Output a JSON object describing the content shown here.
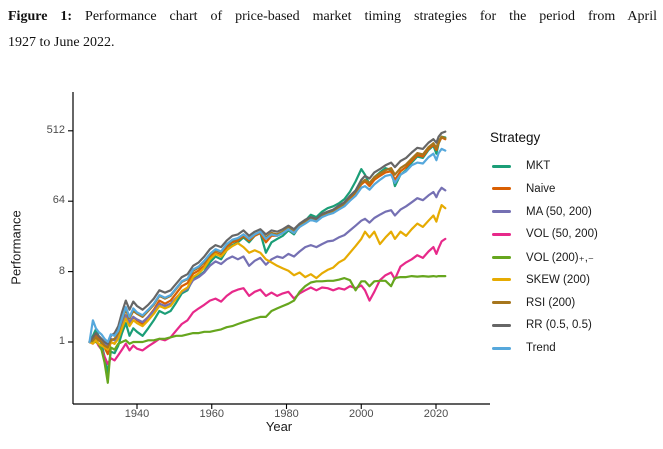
{
  "caption": {
    "figure_label": "Figure 1:",
    "line1": "Performance chart of price-based market timing strategies for the period from April",
    "line2": "1927 to June 2022."
  },
  "chart_data": {
    "type": "line",
    "title": "",
    "xlabel": "Year",
    "ylabel": "Performance",
    "legend_title": "Strategy",
    "legend_position": "right",
    "grid": false,
    "yscale": "log",
    "log_base": 8,
    "y_ticks": [
      1,
      8,
      64,
      512
    ],
    "x_ticks": [
      1940,
      1960,
      1980,
      2000,
      2020
    ],
    "xlim": [
      1927.3,
      2022.5
    ],
    "ylim": [
      0.25,
      600
    ],
    "x": [
      1927.3,
      1928.2,
      1929,
      1929.7,
      1930.5,
      1931.3,
      1932.2,
      1933,
      1934,
      1935,
      1936,
      1937,
      1938,
      1939,
      1940,
      1941.5,
      1943,
      1944.5,
      1946,
      1947.5,
      1949,
      1950.5,
      1952,
      1953.5,
      1955,
      1956.5,
      1958,
      1959.5,
      1961,
      1962.5,
      1964,
      1965.5,
      1967,
      1968.5,
      1970,
      1971.5,
      1973,
      1974.5,
      1976,
      1977.5,
      1979,
      1980.5,
      1982,
      1983.5,
      1985,
      1986.5,
      1988,
      1989.5,
      1991,
      1992.5,
      1994,
      1995.5,
      1997,
      1998.5,
      2000,
      2001,
      2002.2,
      2003.5,
      2005,
      2006.5,
      2008,
      2009,
      2010.5,
      2012,
      2013.5,
      2015,
      2016.5,
      2018,
      2019.3,
      2020.1,
      2020.7,
      2021.5,
      2022.5
    ],
    "series": [
      {
        "name": "MKT",
        "color": "#1B9E77",
        "values": [
          1.0,
          1.2,
          1.45,
          1.2,
          0.95,
          0.65,
          0.4,
          0.75,
          0.72,
          0.9,
          1.3,
          1.75,
          1.2,
          1.5,
          1.35,
          1.2,
          1.5,
          1.9,
          2.5,
          2.3,
          2.5,
          3.2,
          4.2,
          4.6,
          6.5,
          7.0,
          8.0,
          10.5,
          12.5,
          11.5,
          15,
          17.5,
          19,
          22,
          19,
          23,
          25,
          14,
          19,
          21,
          23,
          27,
          24,
          31,
          36,
          43,
          40,
          47,
          52,
          55,
          60,
          68,
          85,
          115,
          165,
          140,
          105,
          130,
          150,
          170,
          160,
          100,
          140,
          160,
          200,
          240,
          230,
          290,
          330,
          260,
          350,
          430,
          420
        ]
      },
      {
        "name": "Naive",
        "color": "#D95F02",
        "values": [
          1.0,
          1.1,
          1.25,
          1.1,
          1.0,
          0.85,
          0.7,
          1.0,
          0.95,
          1.15,
          1.6,
          2.2,
          1.7,
          2.1,
          1.9,
          1.7,
          2.1,
          2.6,
          3.4,
          3.1,
          3.4,
          4.2,
          5.2,
          5.7,
          7.5,
          8.3,
          9.5,
          12,
          14,
          13,
          16.5,
          19,
          20,
          23,
          20,
          23,
          25,
          19,
          23,
          23,
          25,
          28,
          25,
          30,
          34,
          38,
          36,
          41,
          45,
          48,
          53,
          58,
          70,
          82,
          105,
          115,
          100,
          120,
          135,
          150,
          155,
          120,
          155,
          175,
          210,
          250,
          240,
          300,
          340,
          290,
          360,
          420,
          400
        ]
      },
      {
        "name": "MA (50, 200)",
        "color": "#7570B3",
        "values": [
          1.0,
          1.05,
          1.15,
          1.05,
          1.0,
          0.95,
          0.9,
          1.1,
          1.05,
          1.2,
          1.6,
          2.2,
          1.8,
          2.1,
          1.95,
          1.8,
          2.1,
          2.5,
          3.1,
          2.9,
          3.1,
          3.7,
          4.4,
          4.8,
          6.2,
          6.8,
          7.8,
          9.5,
          10.8,
          10,
          11.5,
          12.5,
          11.5,
          12.5,
          9.5,
          11,
          12,
          9.8,
          11.5,
          12.5,
          12,
          13.5,
          12.5,
          14.5,
          16.5,
          17.5,
          16.5,
          18,
          19.5,
          20,
          22,
          23.5,
          27,
          31,
          36,
          38,
          34,
          39,
          43,
          47,
          49,
          42,
          50,
          55,
          62,
          70,
          66,
          76,
          84,
          72,
          84,
          95,
          88
        ]
      },
      {
        "name": "VOL (50, 200)",
        "color": "#E7298A",
        "values": [
          1.0,
          0.95,
          1.05,
          0.9,
          0.8,
          0.65,
          0.52,
          0.62,
          0.58,
          0.68,
          0.8,
          0.95,
          0.78,
          0.9,
          0.82,
          0.78,
          0.88,
          0.98,
          1.1,
          1.05,
          1.15,
          1.4,
          1.7,
          1.9,
          2.4,
          2.7,
          3.0,
          3.4,
          3.6,
          3.3,
          3.9,
          4.4,
          4.7,
          4.9,
          3.9,
          4.4,
          4.7,
          3.9,
          4.3,
          3.9,
          4.2,
          4.4,
          3.6,
          4.2,
          4.6,
          5.0,
          4.6,
          5.0,
          4.9,
          4.6,
          4.9,
          4.7,
          5.2,
          4.9,
          5.3,
          4.6,
          3.4,
          4.4,
          6.2,
          7.2,
          7.8,
          6.4,
          9.3,
          10.5,
          11.5,
          13,
          12,
          14.5,
          16.5,
          13.5,
          16,
          19.5,
          21
        ]
      },
      {
        "name": "VOL (200)₊,₋",
        "color": "#66A61E",
        "values": [
          1.0,
          1.0,
          1.0,
          0.95,
          0.8,
          0.55,
          0.3,
          0.85,
          0.8,
          0.95,
          1.0,
          1.05,
          0.95,
          1.0,
          1.0,
          1.0,
          1.05,
          1.05,
          1.1,
          1.1,
          1.15,
          1.2,
          1.2,
          1.25,
          1.3,
          1.3,
          1.35,
          1.35,
          1.4,
          1.45,
          1.55,
          1.6,
          1.7,
          1.8,
          1.9,
          2.0,
          2.1,
          2.1,
          2.5,
          2.7,
          2.9,
          3.1,
          3.4,
          4.4,
          5.2,
          5.8,
          6.0,
          6.0,
          6.1,
          6.1,
          6.3,
          6.6,
          6.2,
          4.6,
          6.0,
          6.0,
          5.2,
          6.0,
          6.1,
          6.1,
          5.2,
          6.6,
          6.8,
          6.8,
          7.0,
          6.9,
          7.0,
          6.9,
          7.0,
          6.9,
          7.0,
          7.0,
          7.0
        ]
      },
      {
        "name": "SKEW (200)",
        "color": "#E6AB02",
        "values": [
          1.0,
          0.95,
          1.05,
          0.95,
          0.9,
          0.85,
          0.8,
          1.0,
          0.95,
          1.1,
          1.5,
          2.0,
          1.6,
          1.9,
          1.75,
          1.6,
          1.9,
          2.3,
          2.9,
          2.7,
          2.9,
          3.6,
          4.5,
          5.0,
          6.8,
          7.6,
          9.0,
          11.5,
          13.5,
          12.5,
          15,
          17,
          18.5,
          16.5,
          14,
          15,
          14,
          11.5,
          10.5,
          9.5,
          8.8,
          8.2,
          7.2,
          7.8,
          6.8,
          7.4,
          6.6,
          7.6,
          8.4,
          9.0,
          10.5,
          11.5,
          14,
          17,
          21,
          26,
          22,
          26,
          18,
          22,
          26,
          21,
          26,
          23,
          28,
          33,
          30,
          36,
          42,
          35,
          44,
          57,
          52
        ]
      },
      {
        "name": "RSI (200)",
        "color": "#A6761D",
        "values": [
          1.0,
          1.05,
          1.15,
          1.05,
          1.0,
          0.9,
          0.85,
          1.05,
          1.1,
          1.3,
          1.9,
          2.6,
          2.0,
          2.5,
          2.3,
          2.1,
          2.5,
          3.0,
          3.9,
          3.6,
          3.9,
          4.8,
          5.9,
          6.4,
          8.2,
          9.0,
          10.5,
          13,
          15,
          14,
          17.5,
          20,
          21,
          24,
          21,
          24,
          26,
          22,
          25,
          24,
          26,
          29,
          26,
          31,
          35,
          39,
          37,
          43,
          46,
          48,
          54,
          59,
          72,
          84,
          110,
          120,
          110,
          130,
          145,
          160,
          170,
          140,
          170,
          190,
          225,
          265,
          255,
          315,
          355,
          310,
          375,
          430,
          410
        ]
      },
      {
        "name": "RR (0.5, 0.5)",
        "color": "#666666",
        "values": [
          1.0,
          1.15,
          1.3,
          1.2,
          1.1,
          1.0,
          0.95,
          1.2,
          1.3,
          1.6,
          2.4,
          3.4,
          2.6,
          3.3,
          2.9,
          2.6,
          3.0,
          3.6,
          4.6,
          4.3,
          4.6,
          5.6,
          6.8,
          7.4,
          9.5,
          10.5,
          12.5,
          15.5,
          17.5,
          16.5,
          20,
          23,
          24,
          27,
          23,
          26,
          28,
          24,
          27,
          26,
          28,
          31,
          28,
          33,
          37,
          40,
          38,
          44,
          47,
          50,
          56,
          62,
          75,
          88,
          120,
          135,
          125,
          150,
          165,
          185,
          200,
          175,
          210,
          230,
          270,
          310,
          300,
          360,
          400,
          360,
          430,
          480,
          500
        ]
      },
      {
        "name": "Trend",
        "color": "#56A8DC",
        "values": [
          1.0,
          1.9,
          1.5,
          1.35,
          1.25,
          1.1,
          1.0,
          1.25,
          1.2,
          1.4,
          2.0,
          2.8,
          2.1,
          2.7,
          2.4,
          2.2,
          2.6,
          3.1,
          4.0,
          3.7,
          4.0,
          4.9,
          6.0,
          6.5,
          8.5,
          9.3,
          11,
          13.5,
          15.5,
          14.5,
          18,
          20.5,
          21.5,
          24,
          21,
          24,
          26,
          21,
          24,
          23,
          25,
          28,
          25,
          30,
          33,
          37,
          35,
          40,
          43,
          45,
          50,
          55,
          65,
          75,
          95,
          100,
          90,
          105,
          120,
          135,
          140,
          110,
          140,
          155,
          185,
          200,
          195,
          235,
          260,
          215,
          265,
          300,
          285
        ]
      }
    ]
  }
}
